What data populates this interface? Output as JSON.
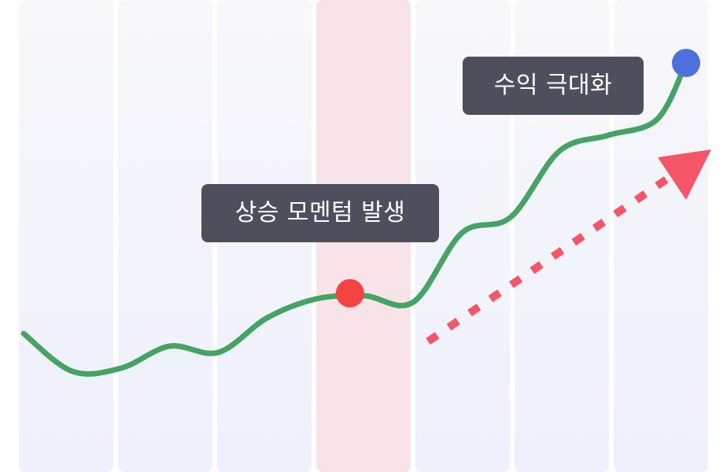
{
  "chart_data": {
    "type": "line",
    "title": "",
    "xlabel": "",
    "ylabel": "",
    "columns": 7,
    "highlighted_column": 3,
    "series": [
      {
        "values": [
          [
            0.0,
            2.2
          ],
          [
            0.5,
            1.6
          ],
          [
            1.0,
            1.65
          ],
          [
            1.5,
            2.0
          ],
          [
            2.0,
            1.9
          ],
          [
            2.5,
            2.45
          ],
          [
            3.0,
            2.75
          ],
          [
            3.5,
            2.8
          ],
          [
            4.0,
            2.7
          ],
          [
            4.5,
            3.8
          ],
          [
            5.0,
            4.05
          ],
          [
            5.5,
            5.1
          ],
          [
            6.0,
            5.35
          ],
          [
            6.5,
            5.6
          ],
          [
            6.8,
            6.5
          ]
        ]
      }
    ],
    "markers": [
      {
        "x": 3.35,
        "y": 2.84,
        "color": "#f54242"
      },
      {
        "x": 6.8,
        "y": 6.5,
        "color": "#4e70dc"
      }
    ],
    "annotations": {
      "momentum": "상승 모멘텀 발생",
      "maximize": "수익 극대화"
    },
    "colors": {
      "line": "#45a364",
      "highlight_band": "#f7e3e8",
      "column_band": "#f1f2f9",
      "trend_arrow": "#f55566",
      "callout_bg": "#4d505c"
    },
    "ylim": [
      0,
      7.5
    ]
  }
}
